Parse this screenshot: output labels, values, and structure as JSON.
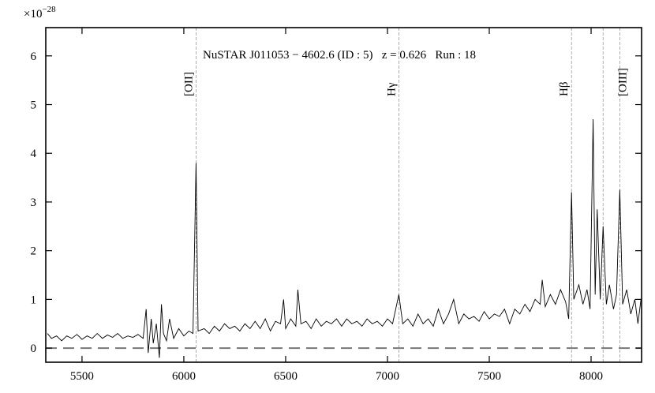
{
  "chart_data": {
    "type": "line",
    "title": "NuSTAR J011053 − 4602.6 (ID : 5)   z = 0.626   Run : 18",
    "offset_label": "×10",
    "offset_exponent": "−28",
    "color": "#000000",
    "x": [
      5330,
      5350,
      5375,
      5400,
      5425,
      5450,
      5475,
      5500,
      5525,
      5550,
      5575,
      5600,
      5625,
      5650,
      5675,
      5700,
      5725,
      5750,
      5775,
      5800,
      5815,
      5825,
      5840,
      5850,
      5865,
      5880,
      5890,
      5900,
      5915,
      5930,
      5950,
      5975,
      6000,
      6025,
      6045,
      6060,
      6070,
      6100,
      6125,
      6150,
      6175,
      6200,
      6225,
      6250,
      6275,
      6300,
      6325,
      6350,
      6375,
      6400,
      6425,
      6450,
      6475,
      6490,
      6500,
      6525,
      6550,
      6560,
      6575,
      6600,
      6625,
      6650,
      6675,
      6700,
      6725,
      6750,
      6775,
      6800,
      6825,
      6850,
      6875,
      6900,
      6925,
      6950,
      6975,
      7000,
      7025,
      7056,
      7075,
      7100,
      7125,
      7150,
      7175,
      7200,
      7225,
      7250,
      7275,
      7300,
      7325,
      7350,
      7375,
      7400,
      7425,
      7450,
      7475,
      7500,
      7525,
      7550,
      7575,
      7600,
      7625,
      7650,
      7675,
      7700,
      7725,
      7750,
      7760,
      7775,
      7800,
      7825,
      7850,
      7875,
      7890,
      7904,
      7915,
      7940,
      7960,
      7980,
      7995,
      8010,
      8020,
      8030,
      8045,
      8059,
      8075,
      8090,
      8110,
      8125,
      8141,
      8155,
      8175,
      8195,
      8215,
      8230,
      8245
    ],
    "values": [
      0.3,
      0.2,
      0.25,
      0.15,
      0.25,
      0.2,
      0.28,
      0.18,
      0.25,
      0.2,
      0.3,
      0.2,
      0.27,
      0.22,
      0.3,
      0.2,
      0.25,
      0.22,
      0.28,
      0.2,
      0.8,
      -0.1,
      0.6,
      0.1,
      0.5,
      -0.2,
      0.9,
      0.3,
      0.15,
      0.6,
      0.2,
      0.4,
      0.25,
      0.35,
      0.3,
      3.8,
      0.35,
      0.4,
      0.3,
      0.45,
      0.35,
      0.5,
      0.4,
      0.45,
      0.35,
      0.5,
      0.4,
      0.55,
      0.4,
      0.6,
      0.35,
      0.55,
      0.5,
      1.0,
      0.4,
      0.6,
      0.45,
      1.2,
      0.5,
      0.55,
      0.4,
      0.6,
      0.45,
      0.55,
      0.5,
      0.6,
      0.45,
      0.6,
      0.5,
      0.55,
      0.45,
      0.6,
      0.5,
      0.55,
      0.45,
      0.6,
      0.5,
      1.1,
      0.5,
      0.6,
      0.45,
      0.7,
      0.5,
      0.6,
      0.45,
      0.8,
      0.5,
      0.7,
      1.0,
      0.5,
      0.7,
      0.6,
      0.65,
      0.55,
      0.75,
      0.6,
      0.7,
      0.65,
      0.8,
      0.5,
      0.8,
      0.7,
      0.9,
      0.75,
      1.0,
      0.9,
      1.4,
      0.85,
      1.1,
      0.9,
      1.2,
      0.95,
      0.6,
      3.2,
      1.0,
      1.3,
      0.9,
      1.2,
      0.8,
      4.7,
      1.1,
      2.85,
      1.0,
      2.5,
      0.9,
      1.3,
      0.8,
      1.1,
      3.25,
      0.9,
      1.2,
      0.7,
      1.0,
      0.5,
      1.0
    ],
    "hline": 0,
    "lines": [
      6060,
      7056,
      7904,
      8059,
      8141
    ],
    "line_labels": [
      "[OII]",
      "Hγ",
      "Hβ",
      null,
      "[OIII]"
    ],
    "xlim": [
      5322,
      8248
    ],
    "xticks": [
      5500,
      6000,
      6500,
      7000,
      7500,
      8000
    ],
    "ylim": [
      -0.29,
      6.58
    ],
    "yticks": [
      0,
      1,
      2,
      3,
      4,
      5,
      6
    ]
  }
}
